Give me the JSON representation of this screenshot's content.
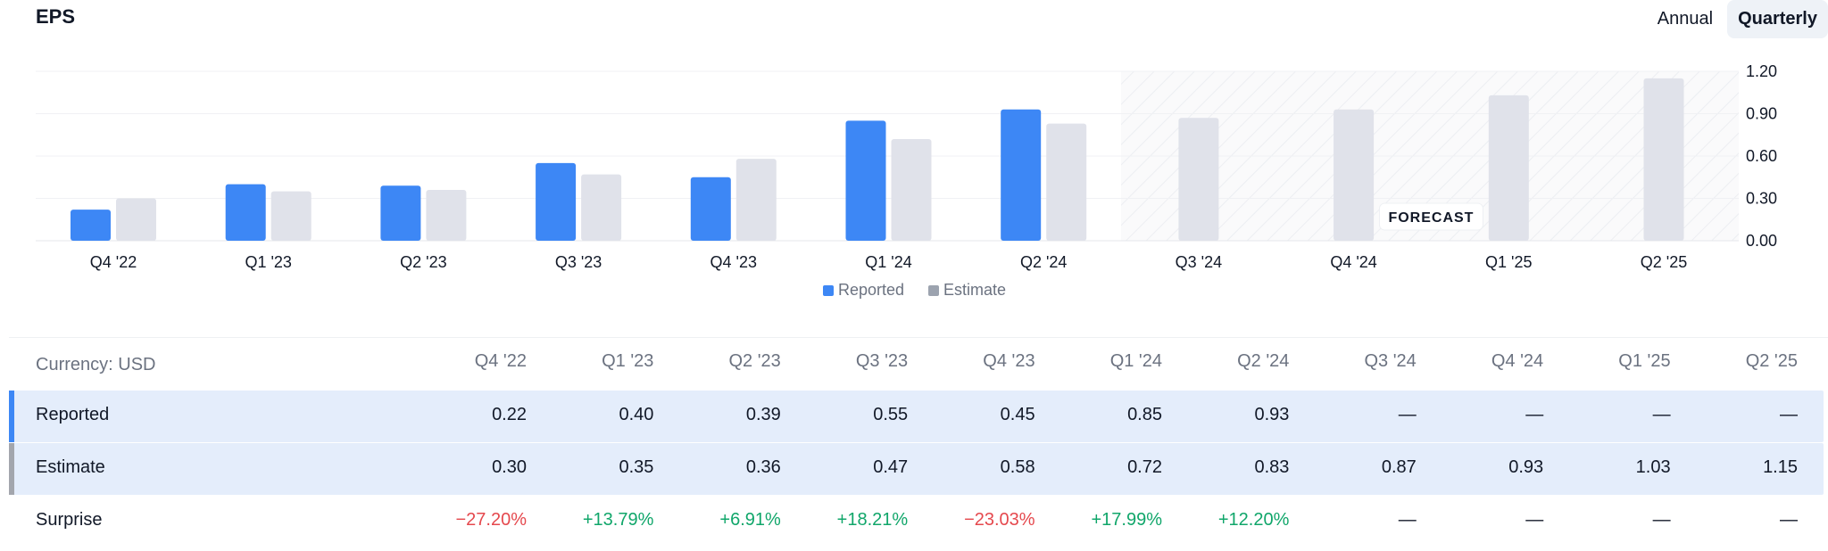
{
  "header": {
    "title": "EPS",
    "toggle": {
      "annual": "Annual",
      "quarterly": "Quarterly",
      "selected": "Quarterly"
    }
  },
  "chart_data": {
    "type": "bar",
    "categories": [
      "Q4 '22",
      "Q1 '23",
      "Q2 '23",
      "Q3 '23",
      "Q4 '23",
      "Q1 '24",
      "Q2 '24",
      "Q3 '24",
      "Q4 '24",
      "Q1 '25",
      "Q2 '25"
    ],
    "series": [
      {
        "name": "Reported",
        "values": [
          0.22,
          0.4,
          0.39,
          0.55,
          0.45,
          0.85,
          0.93,
          null,
          null,
          null,
          null
        ]
      },
      {
        "name": "Estimate",
        "values": [
          0.3,
          0.35,
          0.36,
          0.47,
          0.58,
          0.72,
          0.83,
          0.87,
          0.93,
          1.03,
          1.15
        ]
      }
    ],
    "y_ticks": [
      "1.20",
      "0.90",
      "0.60",
      "0.30",
      "0.00"
    ],
    "ylim": [
      0,
      1.2
    ],
    "forecast_label": "FORECAST",
    "forecast_start_category": "Q3 '24",
    "legend_position": "bottom-center",
    "grid": true
  },
  "colors": {
    "reported": "#3d87f5",
    "estimate": "#e0e2ea",
    "estimate_legend": "#9ca3af",
    "positive": "#10a66a",
    "negative": "#e5484d"
  },
  "table": {
    "currency_label": "Currency: USD",
    "columns": [
      "Q4 '22",
      "Q1 '23",
      "Q2 '23",
      "Q3 '23",
      "Q4 '23",
      "Q1 '24",
      "Q2 '24",
      "Q3 '24",
      "Q4 '24",
      "Q1 '25",
      "Q2 '25"
    ],
    "rows": [
      {
        "label": "Reported",
        "values": [
          "0.22",
          "0.40",
          "0.39",
          "0.55",
          "0.45",
          "0.85",
          "0.93",
          "—",
          "—",
          "—",
          "—"
        ]
      },
      {
        "label": "Estimate",
        "values": [
          "0.30",
          "0.35",
          "0.36",
          "0.47",
          "0.58",
          "0.72",
          "0.83",
          "0.87",
          "0.93",
          "1.03",
          "1.15"
        ]
      },
      {
        "label": "Surprise",
        "values": [
          "−27.20%",
          "+13.79%",
          "+6.91%",
          "+18.21%",
          "−23.03%",
          "+17.99%",
          "+12.20%",
          "—",
          "—",
          "—",
          "—"
        ]
      }
    ]
  }
}
